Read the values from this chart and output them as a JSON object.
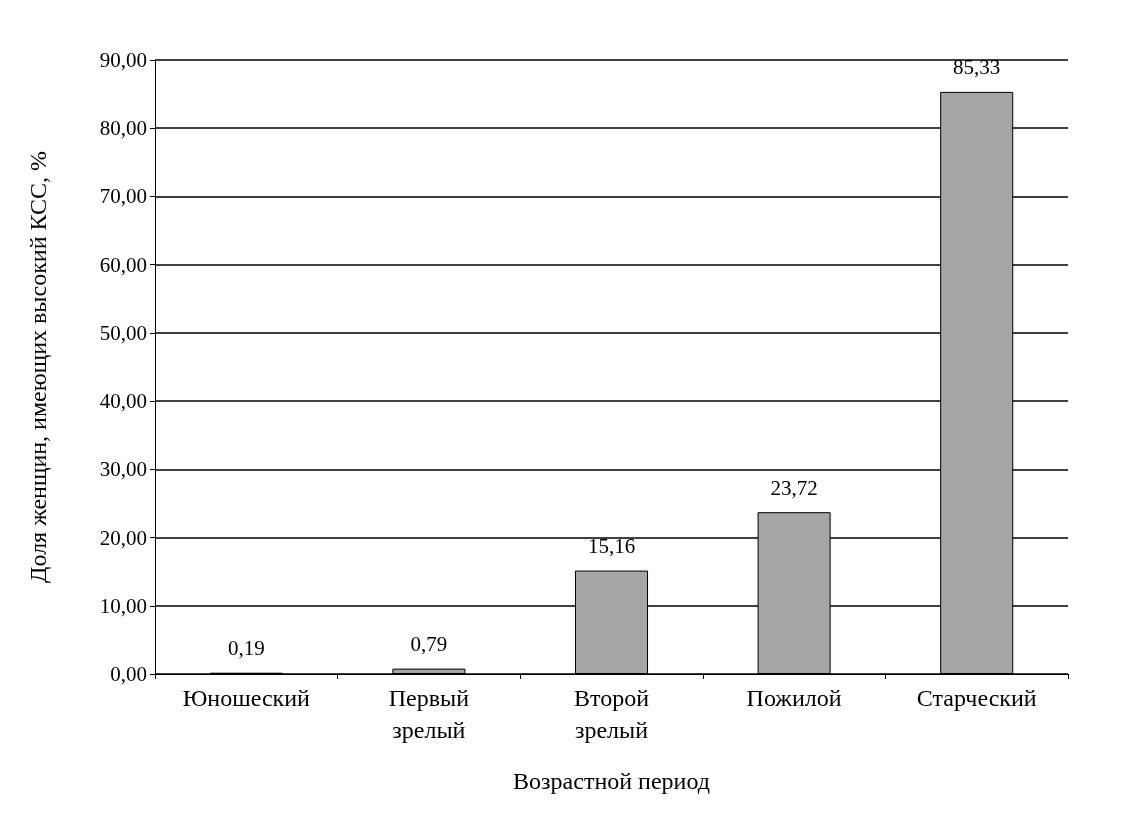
{
  "chart_data": {
    "type": "bar",
    "xlabel": "Возрастной период",
    "ylabel": "Доля женщин, имеющих высокий КСС, %",
    "categories": [
      "Юношеский",
      "Первый\nзрелый",
      "Второй\nзрелый",
      "Пожилой",
      "Старческий"
    ],
    "values": [
      0.19,
      0.79,
      15.16,
      23.72,
      85.33
    ],
    "value_labels": [
      "0,19",
      "0,79",
      "15,16",
      "23,72",
      "85,33"
    ],
    "color": "#a6a6a6",
    "ylim": [
      0,
      90
    ],
    "yticks": [
      {
        "value": 0,
        "label": "0,00"
      },
      {
        "value": 10,
        "label": "10,00"
      },
      {
        "value": 20,
        "label": "20,00"
      },
      {
        "value": 30,
        "label": "30,00"
      },
      {
        "value": 40,
        "label": "40,00"
      },
      {
        "value": 50,
        "label": "50,00"
      },
      {
        "value": 60,
        "label": "60,00"
      },
      {
        "value": 70,
        "label": "70,00"
      },
      {
        "value": 80,
        "label": "80,00"
      },
      {
        "value": 90,
        "label": "90,00"
      }
    ],
    "grid": "y"
  }
}
